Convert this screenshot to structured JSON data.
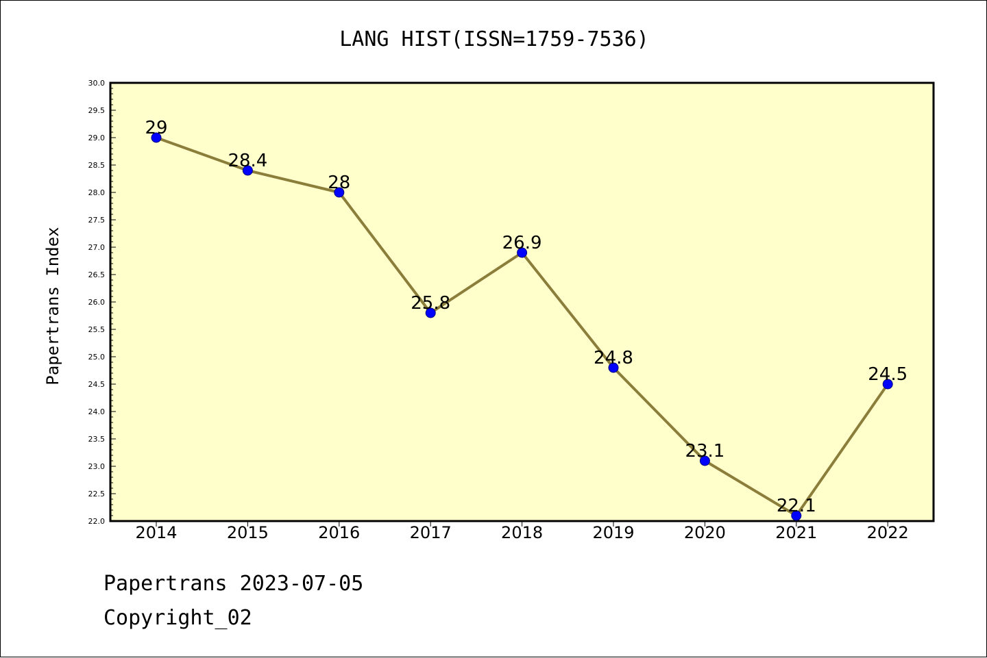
{
  "colors": {
    "plot_background": "#ffffcc",
    "line": "#8b7d3a",
    "marker": "#0000ff",
    "marker_edge": "#000080",
    "axis": "#000000"
  },
  "chart_data": {
    "type": "line",
    "title": "LANG HIST(ISSN=1759-7536)",
    "xlabel": "",
    "ylabel": "Papertrans Index",
    "ylim": [
      22.0,
      30.0
    ],
    "y_ticks": [
      "22.0",
      "22.5",
      "23.0",
      "23.5",
      "24.0",
      "24.5",
      "25.0",
      "25.5",
      "26.0",
      "26.5",
      "27.0",
      "27.5",
      "28.0",
      "28.5",
      "29.0",
      "29.5",
      "30.0"
    ],
    "x": [
      "2014",
      "2015",
      "2016",
      "2017",
      "2018",
      "2019",
      "2020",
      "2021",
      "2022"
    ],
    "series": [
      {
        "values": [
          29,
          28.4,
          28,
          25.8,
          26.9,
          24.8,
          23.1,
          22.1,
          24.5
        ],
        "labels": [
          "29",
          "28.4",
          "28",
          "25.8",
          "26.9",
          "24.8",
          "23.1",
          "22.1",
          "24.5"
        ]
      }
    ],
    "grid": false,
    "legend": "none"
  },
  "footer": {
    "line1": "Papertrans 2023-07-05",
    "line2": "Copyright_02"
  }
}
